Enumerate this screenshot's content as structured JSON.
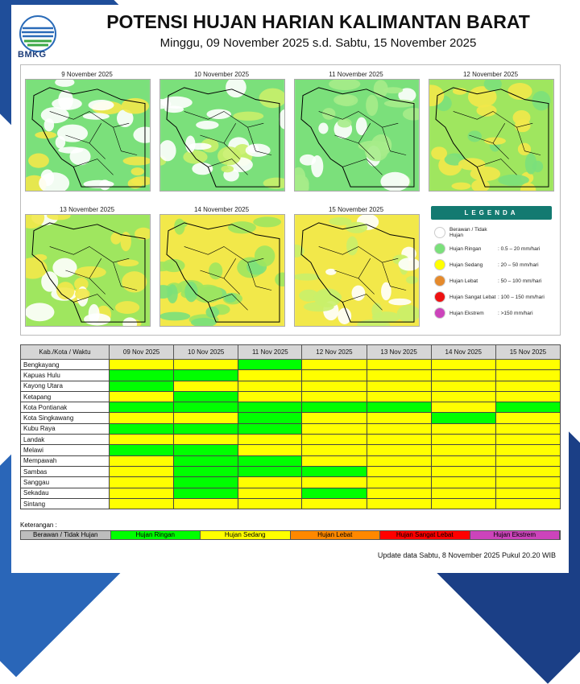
{
  "header": {
    "logo_text": "BMKG",
    "title": "POTENSI HUJAN HARIAN KALIMANTAN BARAT",
    "subtitle": "Minggu, 09 November 2025 s.d. Sabtu, 15 November 2025"
  },
  "maps": [
    {
      "label": "9 November 2025",
      "dominant": "#7be07b",
      "secondary": "#ffffff",
      "accent": "#f2e84a"
    },
    {
      "label": "10 November 2025",
      "dominant": "#7be07b",
      "secondary": "#ffffff",
      "accent": "#c9ef6a"
    },
    {
      "label": "11 November 2025",
      "dominant": "#7be07b",
      "secondary": "#a6ec8a",
      "accent": "#ffffff"
    },
    {
      "label": "12 November 2025",
      "dominant": "#9fe65f",
      "secondary": "#f2e84a",
      "accent": "#7be07b"
    },
    {
      "label": "13 November 2025",
      "dominant": "#9fe65f",
      "secondary": "#f2e84a",
      "accent": "#ffffff"
    },
    {
      "label": "14 November 2025",
      "dominant": "#f2e84a",
      "secondary": "#9fe65f",
      "accent": "#7be07b"
    },
    {
      "label": "15 November 2025",
      "dominant": "#f2e84a",
      "secondary": "#c9ef6a",
      "accent": "#ffffff"
    }
  ],
  "legend": {
    "title": "LEGENDA",
    "items": [
      {
        "name": "Berawan / Tidak Hujan",
        "range": "",
        "color": "#ffffff"
      },
      {
        "name": "Hujan Ringan",
        "range": ": 0.5 – 20 mm/hari",
        "color": "#7be07b"
      },
      {
        "name": "Hujan Sedang",
        "range": ": 20 – 50 mm/hari",
        "color": "#ffff00"
      },
      {
        "name": "Hujan Lebat",
        "range": ": 50 – 100 mm/hari",
        "color": "#e58a2c"
      },
      {
        "name": "Hujan Sangat Lebat",
        "range": ": 100 – 150 mm/hari",
        "color": "#ee1111"
      },
      {
        "name": "Hujan Ekstrem",
        "range": ": >150 mm/hari",
        "color": "#cc44bb"
      }
    ]
  },
  "table": {
    "header": [
      "Kab./Kota / Waktu",
      "09 Nov 2025",
      "10 Nov 2025",
      "11 Nov 2025",
      "12 Nov 2025",
      "13 Nov 2025",
      "14 Nov 2025",
      "15 Nov 2025"
    ],
    "rows": [
      {
        "name": "Bengkayang",
        "values": [
          "Hujan Sedang",
          "Hujan Sedang",
          "Hujan Ringan",
          "Hujan Sedang",
          "Hujan Sedang",
          "Hujan Sedang",
          "Hujan Sedang"
        ]
      },
      {
        "name": "Kapuas Hulu",
        "values": [
          "Hujan Ringan",
          "Hujan Ringan",
          "Hujan Sedang",
          "Hujan Sedang",
          "Hujan Sedang",
          "Hujan Sedang",
          "Hujan Sedang"
        ]
      },
      {
        "name": "Kayong Utara",
        "values": [
          "Hujan Ringan",
          "Hujan Sedang",
          "Hujan Sedang",
          "Hujan Sedang",
          "Hujan Sedang",
          "Hujan Sedang",
          "Hujan Sedang"
        ]
      },
      {
        "name": "Ketapang",
        "values": [
          "Hujan Sedang",
          "Hujan Ringan",
          "Hujan Sedang",
          "Hujan Sedang",
          "Hujan Sedang",
          "Hujan Sedang",
          "Hujan Sedang"
        ]
      },
      {
        "name": "Kota Pontianak",
        "values": [
          "Hujan Ringan",
          "Hujan Ringan",
          "Hujan Ringan",
          "Hujan Ringan",
          "Hujan Ringan",
          "Hujan Sedang",
          "Hujan Ringan"
        ]
      },
      {
        "name": "Kota Singkawang",
        "values": [
          "Hujan Sedang",
          "Hujan Sedang",
          "Hujan Ringan",
          "Hujan Sedang",
          "Hujan Sedang",
          "Hujan Ringan",
          "Hujan Sedang"
        ]
      },
      {
        "name": "Kubu Raya",
        "values": [
          "Hujan Ringan",
          "Hujan Ringan",
          "Hujan Ringan",
          "Hujan Sedang",
          "Hujan Sedang",
          "Hujan Sedang",
          "Hujan Sedang"
        ]
      },
      {
        "name": "Landak",
        "values": [
          "Hujan Sedang",
          "Hujan Sedang",
          "Hujan Sedang",
          "Hujan Sedang",
          "Hujan Sedang",
          "Hujan Sedang",
          "Hujan Sedang"
        ]
      },
      {
        "name": "Melawi",
        "values": [
          "Hujan Ringan",
          "Hujan Ringan",
          "Hujan Sedang",
          "Hujan Sedang",
          "Hujan Sedang",
          "Hujan Sedang",
          "Hujan Sedang"
        ]
      },
      {
        "name": "Mempawah",
        "values": [
          "Hujan Sedang",
          "Hujan Ringan",
          "Hujan Ringan",
          "Hujan Sedang",
          "Hujan Sedang",
          "Hujan Sedang",
          "Hujan Sedang"
        ]
      },
      {
        "name": "Sambas",
        "values": [
          "Hujan Sedang",
          "Hujan Ringan",
          "Hujan Ringan",
          "Hujan Ringan",
          "Hujan Sedang",
          "Hujan Sedang",
          "Hujan Sedang"
        ]
      },
      {
        "name": "Sanggau",
        "values": [
          "Hujan Sedang",
          "Hujan Ringan",
          "Hujan Sedang",
          "Hujan Sedang",
          "Hujan Sedang",
          "Hujan Sedang",
          "Hujan Sedang"
        ]
      },
      {
        "name": "Sekadau",
        "values": [
          "Hujan Sedang",
          "Hujan Ringan",
          "Hujan Sedang",
          "Hujan Ringan",
          "Hujan Sedang",
          "Hujan Sedang",
          "Hujan Sedang"
        ]
      },
      {
        "name": "Sintang",
        "values": [
          "Hujan Sedang",
          "Hujan Sedang",
          "Hujan Sedang",
          "Hujan Sedang",
          "Hujan Sedang",
          "Hujan Sedang",
          "Hujan Sedang"
        ]
      }
    ]
  },
  "keterangan": {
    "label": "Keterangan :",
    "items": [
      {
        "name": "Berawan / Tidak Hujan",
        "color": "#bdbdbd"
      },
      {
        "name": "Hujan Ringan",
        "color": "#00ff00"
      },
      {
        "name": "Hujan Sedang",
        "color": "#ffff00"
      },
      {
        "name": "Hujan Lebat",
        "color": "#ff8800"
      },
      {
        "name": "Hujan Sangat Lebat",
        "color": "#ff0000"
      },
      {
        "name": "Hujan Ekstrem",
        "color": "#cc44bb"
      }
    ]
  },
  "footer": {
    "update": "Update data Sabtu, 8 November 2025 Pukul 20.20 WIB"
  }
}
